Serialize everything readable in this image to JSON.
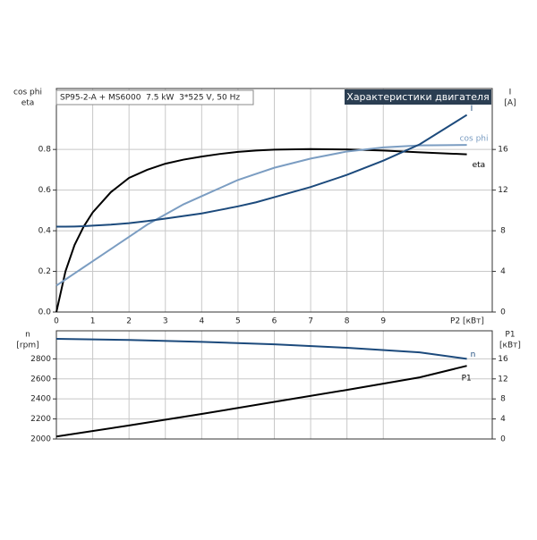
{
  "chart_data": [
    {
      "type": "line",
      "title": "Характеристики двигателя",
      "subtitle": "SP95-2-A + MS6000  7.5 kW  3*525 V, 50 Hz",
      "ylabel": [
        "cos phi",
        "eta"
      ],
      "y2label": [
        "I",
        "[A]"
      ],
      "xlabel": "P2 [кВт]",
      "x": [
        0,
        0.25,
        0.5,
        0.75,
        1,
        1.5,
        2,
        2.5,
        3,
        3.5,
        4,
        4.5,
        5,
        5.5,
        6,
        7,
        8,
        9,
        10,
        11.3
      ],
      "series": [
        {
          "name": "eta",
          "color": "#000000",
          "values": [
            0,
            0.2,
            0.33,
            0.42,
            0.49,
            0.59,
            0.66,
            0.7,
            0.73,
            0.75,
            0.765,
            0.778,
            0.788,
            0.795,
            0.799,
            0.802,
            0.8,
            0.795,
            0.786,
            0.776
          ]
        },
        {
          "name": "cos phi",
          "color": "#7b9dc2",
          "values": [
            0.13,
            0.16,
            0.19,
            0.22,
            0.25,
            0.31,
            0.37,
            0.43,
            0.48,
            0.53,
            0.57,
            0.61,
            0.65,
            0.68,
            0.71,
            0.755,
            0.79,
            0.81,
            0.82,
            0.822
          ]
        },
        {
          "name": "I",
          "color": "#1c4a7c",
          "axis": "y2",
          "values": [
            8.4,
            8.4,
            8.42,
            8.45,
            8.5,
            8.6,
            8.75,
            8.95,
            9.2,
            9.45,
            9.7,
            10.05,
            10.4,
            10.8,
            11.3,
            12.3,
            13.5,
            14.9,
            16.5,
            19.4
          ]
        }
      ],
      "xlim": [
        0,
        12
      ],
      "xticks": [
        0,
        1,
        2,
        3,
        4,
        5,
        6,
        7,
        8,
        9
      ],
      "ylim": [
        0,
        1.1
      ],
      "yticks": [
        {
          "value": 0,
          "label": "0.0"
        },
        0.2,
        0.4,
        0.6,
        0.8
      ],
      "y2lim": [
        0,
        22
      ],
      "y2ticks": [
        0,
        4,
        8,
        12,
        16
      ],
      "grid": true
    },
    {
      "type": "line",
      "ylabel": [
        "n",
        "[rpm]"
      ],
      "y2label": [
        "P1",
        "[кВт]"
      ],
      "x": [
        0,
        2,
        4,
        6,
        8,
        10,
        11.3
      ],
      "series": [
        {
          "name": "n",
          "color": "#1c4a7c",
          "values": [
            3000,
            2988,
            2970,
            2945,
            2910,
            2865,
            2800
          ]
        },
        {
          "name": "P1",
          "color": "#000000",
          "axis": "y2",
          "values": [
            0.5,
            2.7,
            5,
            7.4,
            9.8,
            12.3,
            14.6
          ]
        }
      ],
      "xlim": [
        0,
        12
      ],
      "xticks": [
        0,
        1,
        2,
        3,
        4,
        5,
        6,
        7,
        8,
        9
      ],
      "ylim": [
        2000,
        3080
      ],
      "yticks": [
        2000,
        2200,
        2400,
        2600,
        2800
      ],
      "y2lim": [
        0,
        21.6
      ],
      "y2ticks": [
        0,
        4,
        8,
        12,
        16
      ],
      "grid": true
    }
  ]
}
